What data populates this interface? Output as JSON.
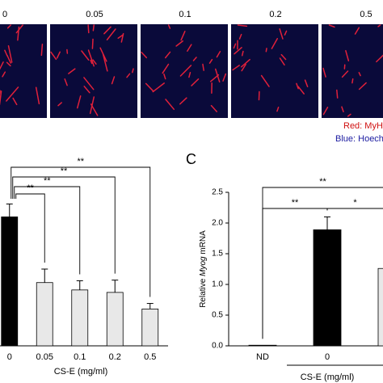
{
  "images": {
    "labels": [
      "0",
      "0.05",
      "0.1",
      "0.2",
      "0.5"
    ],
    "legend": [
      "Red: MyHC",
      "Blue: Hoechst"
    ]
  },
  "chart_data": [
    {
      "type": "bar",
      "categories": [
        "0",
        "0.05",
        "0.1",
        "0.2",
        "0.5"
      ],
      "values": [
        2.1,
        1.03,
        0.91,
        0.87,
        0.6
      ],
      "errors": [
        0.21,
        0.22,
        0.15,
        0.2,
        0.09
      ],
      "colors": [
        "#000000",
        "#e8e8e8",
        "#e8e8e8",
        "#e8e8e8",
        "#e8e8e8"
      ],
      "xlabel": "CS-E (mg/ml)",
      "ylim": [
        0,
        2.5
      ],
      "annotations": [
        "**",
        "**",
        "**",
        "**"
      ]
    },
    {
      "type": "bar",
      "panel": "C",
      "ylabel": [
        "Relative ",
        "Myog",
        " mRNA"
      ],
      "categories": [
        "ND",
        "0",
        null
      ],
      "values": [
        0.01,
        1.89,
        1.26
      ],
      "errors": [
        null,
        0.21,
        null
      ],
      "colors": [
        "#000000",
        "#000000",
        "#e8e8e8"
      ],
      "xlabel": "CS-E (mg/ml)",
      "ylim": [
        0,
        2.5
      ],
      "yticks": [
        {
          "value": 0,
          "label": "0.0"
        },
        0.5,
        {
          "value": 1,
          "label": "1.0"
        },
        1.5,
        {
          "value": 2,
          "label": "2.0"
        },
        2.5
      ],
      "annotations": [
        "**",
        "**",
        "*"
      ]
    }
  ]
}
